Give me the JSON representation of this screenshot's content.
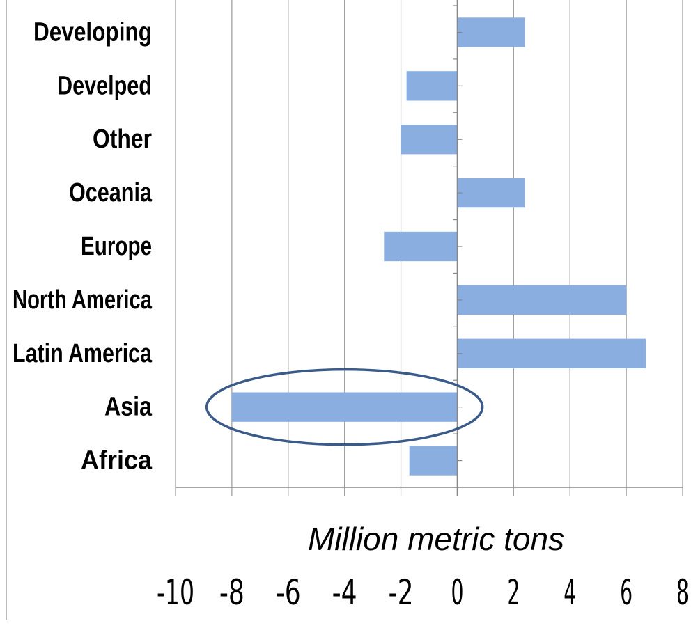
{
  "chart_data": {
    "type": "bar",
    "orientation": "horizontal",
    "categories": [
      "Developing",
      "Develped",
      "Other",
      "Oceania",
      "Europe",
      "North America",
      "Latin America",
      "Asia",
      "Africa"
    ],
    "values": [
      2.4,
      -1.8,
      -2.0,
      2.4,
      -2.6,
      6.0,
      6.7,
      -8.0,
      -1.7
    ],
    "xlabel": "Million metric tons",
    "ylabel": "",
    "xlim": [
      -10,
      8
    ],
    "xticks": [
      -10,
      -8,
      -6,
      -4,
      -2,
      0,
      2,
      4,
      6,
      8
    ],
    "xtick_labels": [
      "-10",
      "-8",
      "-6",
      "-4",
      "-2",
      "0",
      "2",
      "4",
      "6",
      "8"
    ],
    "grid": "vertical",
    "bar_color": "#8aaee0",
    "highlight": {
      "category": "Asia",
      "shape": "ellipse",
      "color": "#3a5a8a"
    }
  }
}
